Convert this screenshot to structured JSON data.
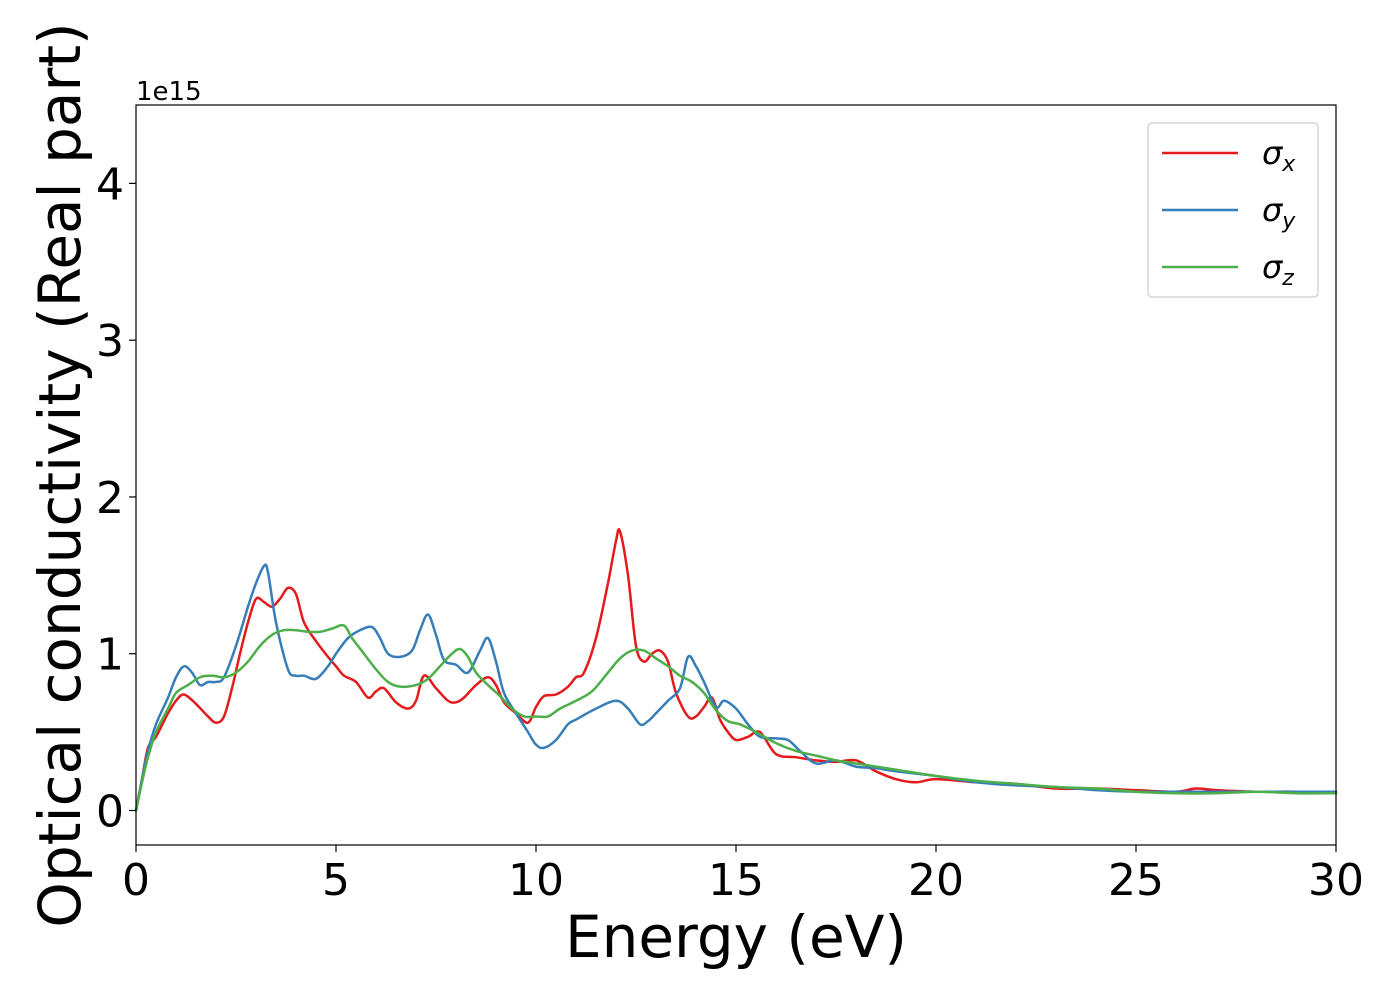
{
  "chart_data": {
    "type": "line",
    "title": "",
    "xlabel": "Energy (eV)",
    "ylabel": "Optical conductivity (Real part)",
    "y_offset_text": "1e15",
    "xlim": [
      0,
      30
    ],
    "ylim": [
      -0.22,
      4.5
    ],
    "y_scale_factor": 1000000000000000.0,
    "xticks": [
      0,
      5,
      10,
      15,
      20,
      25,
      30
    ],
    "yticks": [
      0,
      1,
      2,
      3,
      4
    ],
    "grid": false,
    "legend_position": "top-right",
    "series": [
      {
        "name": "σx",
        "symbol": "σ",
        "sub": "x",
        "color": "#e41a1c",
        "x": [
          0,
          0.15,
          0.3,
          0.5,
          0.8,
          1.0,
          1.2,
          1.5,
          1.8,
          2.0,
          2.2,
          2.4,
          2.6,
          2.8,
          3.0,
          3.2,
          3.4,
          3.6,
          3.8,
          4.0,
          4.2,
          4.5,
          4.8,
          5.0,
          5.2,
          5.5,
          5.8,
          6.0,
          6.2,
          6.5,
          6.8,
          7.0,
          7.2,
          7.5,
          7.8,
          8.0,
          8.2,
          8.5,
          8.8,
          9.0,
          9.2,
          9.5,
          9.8,
          10.0,
          10.2,
          10.5,
          10.8,
          11.0,
          11.2,
          11.5,
          11.8,
          12.0,
          12.1,
          12.3,
          12.5,
          12.7,
          12.9,
          13.1,
          13.3,
          13.5,
          13.8,
          14.0,
          14.2,
          14.4,
          14.6,
          14.8,
          15.0,
          15.3,
          15.6,
          16.0,
          16.5,
          17.0,
          17.5,
          18.0,
          18.5,
          19.0,
          19.5,
          20.0,
          21.0,
          22.0,
          23.0,
          24.0,
          25.0,
          26.0,
          26.5,
          27.0,
          28.0,
          29.0,
          30.0
        ],
        "values": [
          0.0,
          0.2,
          0.4,
          0.47,
          0.62,
          0.7,
          0.74,
          0.68,
          0.6,
          0.56,
          0.6,
          0.78,
          1.0,
          1.2,
          1.35,
          1.33,
          1.3,
          1.35,
          1.42,
          1.38,
          1.2,
          1.08,
          0.98,
          0.92,
          0.86,
          0.82,
          0.72,
          0.76,
          0.78,
          0.69,
          0.65,
          0.7,
          0.86,
          0.78,
          0.7,
          0.69,
          0.72,
          0.8,
          0.85,
          0.8,
          0.69,
          0.62,
          0.56,
          0.66,
          0.73,
          0.74,
          0.79,
          0.85,
          0.88,
          1.1,
          1.45,
          1.72,
          1.78,
          1.5,
          1.05,
          0.95,
          1.0,
          1.02,
          0.95,
          0.75,
          0.6,
          0.6,
          0.66,
          0.72,
          0.58,
          0.5,
          0.45,
          0.47,
          0.5,
          0.36,
          0.34,
          0.32,
          0.31,
          0.32,
          0.25,
          0.2,
          0.18,
          0.2,
          0.18,
          0.17,
          0.14,
          0.14,
          0.13,
          0.12,
          0.14,
          0.13,
          0.12,
          0.12,
          0.11
        ]
      },
      {
        "name": "σy",
        "symbol": "σ",
        "sub": "y",
        "color": "#377eb8",
        "x": [
          0,
          0.15,
          0.3,
          0.5,
          0.8,
          1.0,
          1.2,
          1.4,
          1.6,
          1.8,
          2.0,
          2.2,
          2.5,
          2.8,
          3.0,
          3.2,
          3.3,
          3.5,
          3.8,
          4.0,
          4.2,
          4.5,
          4.8,
          5.0,
          5.3,
          5.6,
          5.9,
          6.1,
          6.3,
          6.6,
          6.9,
          7.1,
          7.3,
          7.5,
          7.7,
          8.0,
          8.3,
          8.6,
          8.8,
          9.0,
          9.2,
          9.5,
          9.8,
          10.0,
          10.2,
          10.5,
          10.8,
          11.0,
          11.5,
          12.0,
          12.3,
          12.6,
          12.8,
          13.0,
          13.3,
          13.6,
          13.8,
          14.0,
          14.2,
          14.5,
          14.7,
          15.0,
          15.3,
          15.6,
          16.0,
          16.3,
          16.6,
          17.0,
          17.5,
          18.0,
          18.5,
          19.0,
          20.0,
          21.0,
          22.0,
          23.0,
          24.0,
          25.0,
          26.0,
          27.0,
          28.0,
          29.0,
          30.0
        ],
        "values": [
          0.0,
          0.2,
          0.38,
          0.55,
          0.72,
          0.85,
          0.92,
          0.88,
          0.8,
          0.82,
          0.82,
          0.85,
          1.05,
          1.3,
          1.45,
          1.56,
          1.52,
          1.2,
          0.9,
          0.86,
          0.86,
          0.84,
          0.92,
          1.0,
          1.1,
          1.15,
          1.17,
          1.1,
          1.0,
          0.98,
          1.02,
          1.15,
          1.25,
          1.12,
          0.96,
          0.93,
          0.88,
          1.02,
          1.1,
          0.95,
          0.75,
          0.62,
          0.5,
          0.42,
          0.4,
          0.45,
          0.55,
          0.58,
          0.65,
          0.7,
          0.65,
          0.55,
          0.57,
          0.62,
          0.7,
          0.78,
          0.98,
          0.92,
          0.82,
          0.66,
          0.7,
          0.65,
          0.55,
          0.47,
          0.46,
          0.45,
          0.38,
          0.3,
          0.32,
          0.28,
          0.27,
          0.25,
          0.22,
          0.18,
          0.16,
          0.15,
          0.13,
          0.12,
          0.12,
          0.12,
          0.12,
          0.12,
          0.12
        ]
      },
      {
        "name": "σz",
        "symbol": "σ",
        "sub": "z",
        "color": "#4daf4a",
        "x": [
          0,
          0.15,
          0.3,
          0.5,
          0.8,
          1.0,
          1.3,
          1.6,
          1.9,
          2.2,
          2.5,
          2.8,
          3.1,
          3.4,
          3.7,
          4.0,
          4.3,
          4.6,
          4.9,
          5.2,
          5.4,
          5.7,
          6.0,
          6.3,
          6.6,
          7.0,
          7.3,
          7.6,
          7.9,
          8.1,
          8.3,
          8.5,
          8.8,
          9.1,
          9.4,
          9.7,
          10.0,
          10.3,
          10.6,
          11.0,
          11.4,
          11.8,
          12.1,
          12.4,
          12.7,
          13.0,
          13.3,
          13.6,
          13.9,
          14.2,
          14.5,
          14.8,
          15.1,
          15.5,
          16.0,
          16.5,
          17.0,
          17.5,
          18.0,
          18.5,
          19.0,
          20.0,
          21.0,
          22.0,
          23.0,
          24.0,
          25.0,
          26.0,
          27.0,
          28.0,
          29.0,
          30.0
        ],
        "values": [
          0.0,
          0.18,
          0.34,
          0.5,
          0.65,
          0.75,
          0.8,
          0.85,
          0.86,
          0.85,
          0.88,
          0.95,
          1.05,
          1.12,
          1.15,
          1.15,
          1.14,
          1.14,
          1.16,
          1.18,
          1.1,
          1.0,
          0.9,
          0.82,
          0.79,
          0.8,
          0.84,
          0.92,
          1.0,
          1.03,
          0.98,
          0.88,
          0.8,
          0.73,
          0.65,
          0.6,
          0.6,
          0.6,
          0.65,
          0.7,
          0.76,
          0.88,
          0.97,
          1.02,
          1.02,
          0.97,
          0.92,
          0.86,
          0.82,
          0.75,
          0.64,
          0.57,
          0.55,
          0.5,
          0.43,
          0.38,
          0.35,
          0.32,
          0.3,
          0.28,
          0.26,
          0.22,
          0.19,
          0.17,
          0.15,
          0.14,
          0.12,
          0.11,
          0.11,
          0.12,
          0.11,
          0.11
        ]
      }
    ]
  }
}
